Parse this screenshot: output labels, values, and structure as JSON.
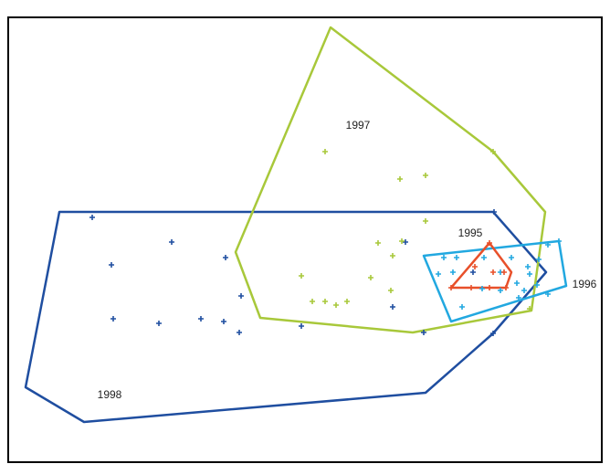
{
  "labels": {
    "y1995": "1995",
    "y1996": "1996",
    "y1997": "1997",
    "y1998": "1998"
  }
}
